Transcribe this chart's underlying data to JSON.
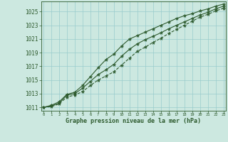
{
  "x": [
    0,
    1,
    2,
    3,
    4,
    5,
    6,
    7,
    8,
    9,
    10,
    11,
    12,
    13,
    14,
    15,
    16,
    17,
    18,
    19,
    20,
    21,
    22,
    23
  ],
  "line_upper": [
    1011.0,
    1011.3,
    1011.8,
    1012.9,
    1013.2,
    1014.2,
    1015.5,
    1016.8,
    1018.0,
    1018.8,
    1020.0,
    1021.0,
    1021.5,
    1022.0,
    1022.5,
    1023.0,
    1023.5,
    1024.0,
    1024.4,
    1024.7,
    1025.1,
    1025.4,
    1025.8,
    1026.1
  ],
  "line_mid": [
    1011.0,
    1011.2,
    1011.6,
    1012.8,
    1013.0,
    1013.8,
    1014.8,
    1015.8,
    1016.5,
    1017.3,
    1018.5,
    1019.5,
    1020.3,
    1020.9,
    1021.4,
    1021.9,
    1022.5,
    1023.0,
    1023.5,
    1024.0,
    1024.5,
    1024.9,
    1025.4,
    1025.8
  ],
  "line_lower": [
    1011.0,
    1011.1,
    1011.5,
    1012.5,
    1012.8,
    1013.3,
    1014.2,
    1015.0,
    1015.6,
    1016.2,
    1017.2,
    1018.2,
    1019.2,
    1019.8,
    1020.5,
    1021.1,
    1021.8,
    1022.4,
    1023.0,
    1023.6,
    1024.2,
    1024.6,
    1025.1,
    1025.5
  ],
  "bg_color": "#cce8e0",
  "grid_color": "#99cccc",
  "line_color": "#2d5a2d",
  "xlabel": "Graphe pression niveau de la mer (hPa)",
  "ylim": [
    1010.5,
    1026.5
  ],
  "xlim": [
    -0.3,
    23.3
  ],
  "yticks": [
    1011,
    1013,
    1015,
    1017,
    1019,
    1021,
    1023,
    1025
  ],
  "xticks": [
    0,
    1,
    2,
    3,
    4,
    5,
    6,
    7,
    8,
    9,
    10,
    11,
    12,
    13,
    14,
    15,
    16,
    17,
    18,
    19,
    20,
    21,
    22,
    23
  ]
}
